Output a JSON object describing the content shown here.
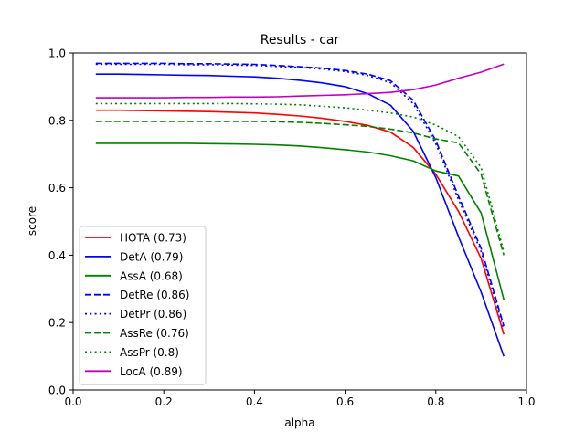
{
  "chart_data": {
    "type": "line",
    "title": "Results - car",
    "xlabel": "alpha",
    "ylabel": "score",
    "xlim": [
      0.0,
      1.0
    ],
    "ylim": [
      0.0,
      1.0
    ],
    "xticks": [
      "0.0",
      "0.2",
      "0.4",
      "0.6",
      "0.8",
      "1.0"
    ],
    "yticks": [
      "0.0",
      "0.2",
      "0.4",
      "0.6",
      "0.8",
      "1.0"
    ],
    "x": [
      0.05,
      0.1,
      0.15,
      0.2,
      0.25,
      0.3,
      0.35,
      0.4,
      0.45,
      0.5,
      0.55,
      0.6,
      0.65,
      0.7,
      0.75,
      0.8,
      0.85,
      0.9,
      0.95
    ],
    "grid": false,
    "legend_position": "lower-left",
    "series": [
      {
        "name": "HOTA (0.73)",
        "color": "#ff0000",
        "style": "solid",
        "values": [
          0.83,
          0.83,
          0.829,
          0.828,
          0.827,
          0.826,
          0.824,
          0.822,
          0.818,
          0.813,
          0.806,
          0.797,
          0.785,
          0.765,
          0.72,
          0.64,
          0.53,
          0.39,
          0.165
        ]
      },
      {
        "name": "DetA (0.79)",
        "color": "#0000ff",
        "style": "solid",
        "values": [
          0.937,
          0.937,
          0.936,
          0.935,
          0.934,
          0.933,
          0.931,
          0.929,
          0.925,
          0.919,
          0.911,
          0.9,
          0.879,
          0.845,
          0.768,
          0.63,
          0.455,
          0.29,
          0.1
        ]
      },
      {
        "name": "AssA (0.68)",
        "color": "#008000",
        "style": "solid",
        "values": [
          0.732,
          0.732,
          0.732,
          0.732,
          0.732,
          0.731,
          0.73,
          0.729,
          0.727,
          0.724,
          0.719,
          0.713,
          0.706,
          0.695,
          0.68,
          0.65,
          0.635,
          0.525,
          0.268
        ]
      },
      {
        "name": "DetRe (0.86)",
        "color": "#0000ff",
        "style": "dashed",
        "values": [
          0.969,
          0.969,
          0.969,
          0.969,
          0.968,
          0.968,
          0.967,
          0.966,
          0.963,
          0.959,
          0.955,
          0.948,
          0.937,
          0.918,
          0.86,
          0.74,
          0.575,
          0.42,
          0.19
        ]
      },
      {
        "name": "DetPr (0.86)",
        "color": "#0000ff",
        "style": "dotted",
        "values": [
          0.966,
          0.966,
          0.966,
          0.966,
          0.965,
          0.965,
          0.964,
          0.963,
          0.96,
          0.957,
          0.952,
          0.945,
          0.933,
          0.912,
          0.85,
          0.73,
          0.565,
          0.41,
          0.18
        ]
      },
      {
        "name": "AssRe (0.76)",
        "color": "#008000",
        "style": "dashed",
        "values": [
          0.797,
          0.797,
          0.797,
          0.797,
          0.797,
          0.797,
          0.797,
          0.797,
          0.796,
          0.794,
          0.791,
          0.787,
          0.782,
          0.774,
          0.763,
          0.745,
          0.733,
          0.64,
          0.4
        ]
      },
      {
        "name": "AssPr (0.8)",
        "color": "#008000",
        "style": "dotted",
        "values": [
          0.85,
          0.85,
          0.85,
          0.85,
          0.85,
          0.85,
          0.85,
          0.849,
          0.848,
          0.846,
          0.842,
          0.837,
          0.83,
          0.822,
          0.81,
          0.786,
          0.752,
          0.66,
          0.41
        ]
      },
      {
        "name": "LocA (0.89)",
        "color": "#bf00bf",
        "style": "solid",
        "values": [
          0.867,
          0.867,
          0.867,
          0.867,
          0.868,
          0.868,
          0.869,
          0.869,
          0.87,
          0.872,
          0.874,
          0.876,
          0.879,
          0.883,
          0.891,
          0.905,
          0.925,
          0.943,
          0.967
        ]
      }
    ]
  }
}
